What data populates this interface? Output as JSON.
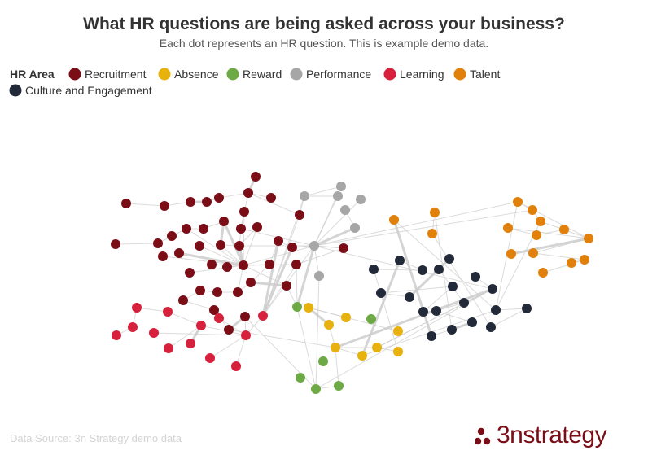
{
  "header": {
    "title": "What HR questions are being asked across your business?",
    "subtitle": "Each dot represents an HR question. This is example demo data."
  },
  "legend": {
    "title": "HR Area",
    "items": [
      {
        "label": "Recruitment",
        "color": "#7b0d17"
      },
      {
        "label": "Absence",
        "color": "#e7b10e"
      },
      {
        "label": "Reward",
        "color": "#6daa45"
      },
      {
        "label": "Performance",
        "color": "#a6a6a6"
      },
      {
        "label": "Learning",
        "color": "#d7203b"
      },
      {
        "label": "Talent",
        "color": "#e2800c"
      },
      {
        "label": "Culture and Engagement",
        "color": "#222938"
      }
    ]
  },
  "footer": {
    "source": "Data Source: 3n Strategy demo data"
  },
  "logo": {
    "text": "3nstrategy",
    "color": "#7b0d17"
  },
  "chart_data": {
    "type": "network",
    "title": "What HR questions are being asked across your business?",
    "subtitle": "Each dot represents an HR question. This is example demo data.",
    "categories": [
      "Recruitment",
      "Absence",
      "Reward",
      "Performance",
      "Learning",
      "Talent",
      "Culture and Engagement"
    ],
    "legend_position": "top-left",
    "edge_color": "#cccccc",
    "node_count": 103
  }
}
